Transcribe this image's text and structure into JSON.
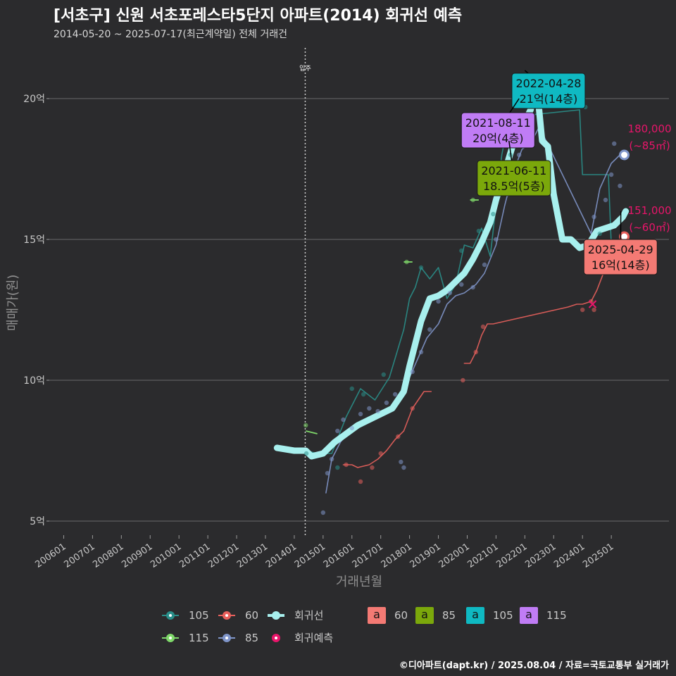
{
  "title": "[서초구] 신원 서초포레스타5단지 아파트(2014) 회귀선 예측",
  "subtitle": "2014-05-20 ~ 2025-07-17(최근계약일) 전체 거래건",
  "footer": "©디아파트(dapt.kr) / 2025.08.04 / 자료=국토교통부 실거래가",
  "legend": {
    "line_items": [
      {
        "label": "105",
        "color": "#2a8f8a"
      },
      {
        "label": "60",
        "color": "#e8605c"
      },
      {
        "label": "회귀선",
        "color": "#a8f0ee"
      },
      {
        "label": "115",
        "color": "#7fd86a"
      },
      {
        "label": "85",
        "color": "#7f95c9"
      },
      {
        "label": "회귀예측",
        "color": "#e8156a"
      }
    ],
    "box_items": [
      {
        "glyph": "a",
        "label": "60",
        "color": "#f47a74"
      },
      {
        "glyph": "a",
        "label": "85",
        "color": "#7ba80b"
      },
      {
        "glyph": "a",
        "label": "105",
        "color": "#0fb9c2"
      },
      {
        "glyph": "a",
        "label": "115",
        "color": "#c07cf5"
      }
    ]
  },
  "chart_data": {
    "type": "line",
    "title": "[서초구] 신원 서초포레스타5단지 아파트(2014) 회귀선 예측",
    "xlabel": "거래년월",
    "ylabel": "매매가(원)",
    "x_unit": "year (decimal)",
    "y_unit": "억원",
    "xlim": [
      2005.5,
      2027.0
    ],
    "ylim": [
      4.5,
      21.8
    ],
    "x_ticks": [
      {
        "value": 2006.0,
        "label": "200601"
      },
      {
        "value": 2007.0,
        "label": "200701"
      },
      {
        "value": 2008.0,
        "label": "200801"
      },
      {
        "value": 2009.0,
        "label": "200901"
      },
      {
        "value": 2010.0,
        "label": "201001"
      },
      {
        "value": 2011.0,
        "label": "201101"
      },
      {
        "value": 2012.0,
        "label": "201201"
      },
      {
        "value": 2013.0,
        "label": "201301"
      },
      {
        "value": 2014.0,
        "label": "201401"
      },
      {
        "value": 2015.0,
        "label": "201501"
      },
      {
        "value": 2016.0,
        "label": "201601"
      },
      {
        "value": 2017.0,
        "label": "201701"
      },
      {
        "value": 2018.0,
        "label": "201801"
      },
      {
        "value": 2019.0,
        "label": "201901"
      },
      {
        "value": 2020.0,
        "label": "202001"
      },
      {
        "value": 2021.0,
        "label": "202101"
      },
      {
        "value": 2022.0,
        "label": "202201"
      },
      {
        "value": 2023.0,
        "label": "202301"
      },
      {
        "value": 2024.0,
        "label": "202401"
      },
      {
        "value": 2025.0,
        "label": "202501"
      }
    ],
    "y_ticks": [
      {
        "value": 5,
        "label": "5억"
      },
      {
        "value": 10,
        "label": "10억"
      },
      {
        "value": 15,
        "label": "15억"
      },
      {
        "value": 20,
        "label": "20억"
      }
    ],
    "grid": true,
    "vline": {
      "x": 2014.38,
      "label": "입주"
    },
    "series": [
      {
        "name": "105",
        "color": "#2a8f8a",
        "x": [
          2014.4,
          2014.8,
          2015.3,
          2015.8,
          2016.3,
          2016.8,
          2017.3,
          2017.8,
          2018.0,
          2018.2,
          2018.4,
          2018.7,
          2019.0,
          2019.3,
          2019.6,
          2019.9,
          2020.2,
          2020.5,
          2020.8,
          2021.0,
          2021.2,
          2021.45,
          2021.7,
          2022.0,
          2023.9,
          2024.0,
          2024.1,
          2024.9,
          2025.0
        ],
        "y": [
          7.5,
          7.4,
          7.4,
          8.7,
          9.7,
          9.3,
          10.1,
          11.8,
          12.9,
          13.3,
          14.0,
          13.6,
          14.0,
          12.9,
          13.4,
          14.8,
          14.7,
          15.4,
          14.4,
          16.2,
          18.0,
          19.3,
          19.4,
          19.4,
          19.6,
          17.3,
          17.3,
          17.3,
          14.8
        ]
      },
      {
        "name": "60",
        "color": "#e8605c",
        "x": [
          2015.7,
          2016.0,
          2016.2,
          2016.6,
          2016.9,
          2017.2,
          2017.5,
          2017.8,
          2018.1,
          2018.3,
          2018.5,
          2018.75,
          2019.0,
          2019.9,
          2020.1,
          2020.3,
          2020.5,
          2020.7,
          2020.9,
          2023.5,
          2023.8,
          2024.0,
          2024.3,
          2024.5,
          2024.8,
          2025.0,
          2025.2,
          2025.45
        ],
        "y": [
          7.0,
          7.0,
          6.9,
          7.0,
          7.2,
          7.5,
          7.9,
          8.2,
          9.0,
          9.3,
          9.6,
          9.6,
          null,
          10.6,
          10.6,
          11.0,
          11.6,
          12.0,
          12.0,
          12.6,
          12.7,
          12.7,
          12.8,
          13.2,
          14.0,
          14.3,
          14.9,
          15.1
        ]
      },
      {
        "name": "115",
        "color": "#7fd86a",
        "x": [
          2014.4,
          2014.8,
          2017.8,
          2018.1,
          2020.1,
          2020.4,
          2021.7,
          2022.0
        ],
        "y": [
          8.2,
          8.1,
          14.2,
          14.2,
          16.4,
          16.4,
          20.0,
          20.0
        ]
      },
      {
        "name": "85",
        "color": "#7f95c9",
        "x": [
          2015.1,
          2015.3,
          2015.6,
          2016.0,
          2016.5,
          2017.0,
          2017.3,
          2017.6,
          2018.0,
          2018.3,
          2018.6,
          2019.0,
          2019.3,
          2019.6,
          2019.9,
          2020.3,
          2020.6,
          2021.0,
          2021.3,
          2021.6,
          2021.9,
          2022.2,
          2022.5,
          2024.3,
          2024.6,
          2025.0,
          2025.3,
          2025.5
        ],
        "y": [
          6.0,
          7.2,
          7.8,
          8.3,
          8.6,
          8.7,
          9.0,
          9.4,
          10.1,
          10.8,
          11.5,
          12.0,
          12.7,
          13.0,
          13.1,
          13.4,
          13.8,
          14.8,
          16.2,
          17.4,
          18.2,
          18.4,
          19.0,
          15.2,
          16.8,
          17.7,
          18.0,
          18.0
        ]
      },
      {
        "name": "회귀선",
        "color": "#a8f0ee",
        "x": [
          2013.4,
          2014.0,
          2014.4,
          2014.6,
          2015.0,
          2015.4,
          2015.8,
          2016.2,
          2016.6,
          2017.0,
          2017.4,
          2017.8,
          2018.0,
          2018.2,
          2018.4,
          2018.7,
          2019.0,
          2019.3,
          2019.6,
          2019.9,
          2020.2,
          2020.5,
          2020.8,
          2021.0,
          2021.3,
          2021.6,
          2021.9,
          2022.2,
          2022.4,
          2022.6,
          2022.8,
          2023.0,
          2023.3,
          2023.6,
          2023.9,
          2024.2,
          2024.5,
          2024.8,
          2025.1,
          2025.4,
          2025.5
        ],
        "y": [
          7.6,
          7.5,
          7.5,
          7.3,
          7.4,
          7.8,
          8.1,
          8.4,
          8.6,
          8.8,
          9.0,
          9.6,
          10.5,
          11.3,
          12.1,
          12.9,
          13.0,
          13.2,
          13.5,
          13.8,
          14.3,
          14.9,
          15.6,
          16.4,
          17.4,
          18.4,
          19.0,
          19.6,
          20.6,
          18.5,
          18.3,
          16.6,
          15.0,
          15.0,
          14.7,
          14.8,
          15.3,
          15.4,
          15.5,
          15.8,
          16.0
        ]
      }
    ],
    "scatter_points": [
      {
        "series": "105",
        "x": 2014.42,
        "y": 7.4
      },
      {
        "series": "105",
        "x": 2015.5,
        "y": 6.9
      },
      {
        "series": "105",
        "x": 2016.0,
        "y": 9.7
      },
      {
        "series": "105",
        "x": 2016.4,
        "y": 9.5
      },
      {
        "series": "105",
        "x": 2017.1,
        "y": 10.2
      },
      {
        "series": "105",
        "x": 2018.4,
        "y": 14.0
      },
      {
        "series": "105",
        "x": 2019.8,
        "y": 14.6
      },
      {
        "series": "105",
        "x": 2020.4,
        "y": 15.3
      },
      {
        "series": "105",
        "x": 2020.9,
        "y": 15.9
      },
      {
        "series": "105",
        "x": 2021.5,
        "y": 18.0
      },
      {
        "series": "105",
        "x": 2024.1,
        "y": 19.7
      },
      {
        "series": "105",
        "x": 2024.6,
        "y": 15.2
      },
      {
        "series": "60",
        "x": 2015.8,
        "y": 7.0
      },
      {
        "series": "60",
        "x": 2016.3,
        "y": 6.4
      },
      {
        "series": "60",
        "x": 2016.7,
        "y": 6.9
      },
      {
        "series": "60",
        "x": 2017.0,
        "y": 7.4
      },
      {
        "series": "60",
        "x": 2017.6,
        "y": 8.0
      },
      {
        "series": "60",
        "x": 2018.1,
        "y": 9.0
      },
      {
        "series": "60",
        "x": 2019.85,
        "y": 10.0
      },
      {
        "series": "60",
        "x": 2020.3,
        "y": 11.0
      },
      {
        "series": "60",
        "x": 2020.55,
        "y": 11.9
      },
      {
        "series": "60",
        "x": 2021.7,
        "y": 19.3
      },
      {
        "series": "60",
        "x": 2024.0,
        "y": 12.5
      },
      {
        "series": "60",
        "x": 2024.3,
        "y": 12.8
      },
      {
        "series": "60",
        "x": 2024.4,
        "y": 12.5
      },
      {
        "series": "60",
        "x": 2024.8,
        "y": 14.0
      },
      {
        "series": "115",
        "x": 2014.4,
        "y": 8.4
      },
      {
        "series": "115",
        "x": 2017.9,
        "y": 14.2
      },
      {
        "series": "115",
        "x": 2020.2,
        "y": 16.4
      },
      {
        "series": "115",
        "x": 2021.85,
        "y": 20.0
      },
      {
        "series": "85",
        "x": 2015.0,
        "y": 5.3
      },
      {
        "series": "85",
        "x": 2015.15,
        "y": 6.7
      },
      {
        "series": "85",
        "x": 2015.3,
        "y": 7.2
      },
      {
        "series": "85",
        "x": 2015.5,
        "y": 8.2
      },
      {
        "series": "85",
        "x": 2015.7,
        "y": 8.6
      },
      {
        "series": "85",
        "x": 2016.0,
        "y": 8.3
      },
      {
        "series": "85",
        "x": 2016.3,
        "y": 8.8
      },
      {
        "series": "85",
        "x": 2016.6,
        "y": 9.0
      },
      {
        "series": "85",
        "x": 2016.9,
        "y": 8.9
      },
      {
        "series": "85",
        "x": 2017.2,
        "y": 9.2
      },
      {
        "series": "85",
        "x": 2017.5,
        "y": 9.5
      },
      {
        "series": "85",
        "x": 2017.7,
        "y": 7.1
      },
      {
        "series": "85",
        "x": 2017.8,
        "y": 6.9
      },
      {
        "series": "85",
        "x": 2018.1,
        "y": 10.3
      },
      {
        "series": "85",
        "x": 2018.4,
        "y": 11.0
      },
      {
        "series": "85",
        "x": 2018.7,
        "y": 11.8
      },
      {
        "series": "85",
        "x": 2019.0,
        "y": 12.8
      },
      {
        "series": "85",
        "x": 2019.4,
        "y": 13.1
      },
      {
        "series": "85",
        "x": 2019.8,
        "y": 13.4
      },
      {
        "series": "85",
        "x": 2020.2,
        "y": 13.3
      },
      {
        "series": "85",
        "x": 2020.6,
        "y": 14.1
      },
      {
        "series": "85",
        "x": 2021.0,
        "y": 15.0
      },
      {
        "series": "85",
        "x": 2021.4,
        "y": 16.6
      },
      {
        "series": "85",
        "x": 2021.8,
        "y": 18.0
      },
      {
        "series": "85",
        "x": 2022.1,
        "y": 18.5
      },
      {
        "series": "85",
        "x": 2024.4,
        "y": 15.8
      },
      {
        "series": "85",
        "x": 2024.8,
        "y": 16.4
      },
      {
        "series": "85",
        "x": 2025.0,
        "y": 17.3
      },
      {
        "series": "85",
        "x": 2025.1,
        "y": 18.4
      },
      {
        "series": "85",
        "x": 2025.3,
        "y": 16.9
      }
    ],
    "forecast": [
      {
        "name": "85",
        "x": 2025.45,
        "y": 18.0,
        "value_label": "180,000",
        "area_label": "(~85㎡)",
        "color": "#7f95c9"
      },
      {
        "name": "60",
        "x": 2025.45,
        "y": 15.1,
        "value_label": "151,000",
        "area_label": "(~60㎡)",
        "color": "#e8605c"
      }
    ],
    "callouts": [
      {
        "date": "2022-04-28",
        "price": "21억(14층)",
        "point_x": 2022.0,
        "point_y": 21.0,
        "box_x": 2021.55,
        "box_y": 20.9,
        "fill": "#0fb9c2"
      },
      {
        "date": "2021-08-11",
        "price": "20억(4층)",
        "point_x": 2021.8,
        "point_y": 20.0,
        "box_x": 2019.8,
        "box_y": 19.5,
        "fill": "#c07cf5"
      },
      {
        "date": "2021-06-11",
        "price": "18.5억(5층)",
        "point_x": 2021.45,
        "point_y": 18.5,
        "box_x": 2020.35,
        "box_y": 17.8,
        "fill": "#7ba80b"
      },
      {
        "date": "2025-04-29",
        "price": "16억(14층)",
        "point_x": 2025.33,
        "point_y": 16.0,
        "box_x": 2024.05,
        "box_y": 15.0,
        "fill": "#f47a74"
      }
    ],
    "x_markers": [
      {
        "x": 2021.7,
        "y": 19.3,
        "color": "#e8156a"
      },
      {
        "x": 2024.35,
        "y": 12.7,
        "color": "#e8156a"
      }
    ]
  }
}
